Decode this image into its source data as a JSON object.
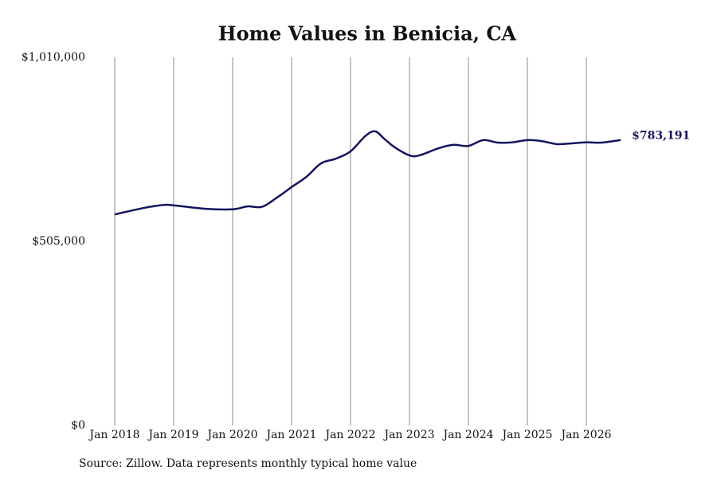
{
  "chart_data": {
    "type": "line",
    "title": "Home Values in Benicia, CA",
    "source": "Source: Zillow. Data represents monthly typical home value",
    "end_label": "$783,191",
    "x": [
      2018.0,
      2018.5,
      2018.833,
      2019.0,
      2019.5,
      2020.0,
      2020.25,
      2020.5,
      2020.75,
      2021.0,
      2021.25,
      2021.5,
      2021.75,
      2022.0,
      2022.25,
      2022.417,
      2022.583,
      2022.75,
      2023.0,
      2023.167,
      2023.5,
      2023.75,
      2024.0,
      2024.25,
      2024.5,
      2024.75,
      2025.0,
      2025.25,
      2025.5,
      2025.75,
      2026.0,
      2026.25,
      2026.583
    ],
    "series": [
      {
        "name": "Typical home value",
        "color": "#14155e",
        "values": [
          579000,
          597000,
          605000,
          604000,
          595000,
          593000,
          601000,
          600000,
          625000,
          654000,
          682000,
          719000,
          732000,
          752000,
          794000,
          807000,
          785000,
          763000,
          741000,
          741000,
          761000,
          770000,
          767000,
          783000,
          776000,
          777000,
          783000,
          780000,
          772000,
          774000,
          777000,
          776000,
          783191
        ]
      }
    ],
    "xlim": [
      2018.0,
      2026.583
    ],
    "xticks": [
      {
        "value": 2018,
        "label": "Jan 2018"
      },
      {
        "value": 2019,
        "label": "Jan 2019"
      },
      {
        "value": 2020,
        "label": "Jan 2020"
      },
      {
        "value": 2021,
        "label": "Jan 2021"
      },
      {
        "value": 2022,
        "label": "Jan 2022"
      },
      {
        "value": 2023,
        "label": "Jan 2023"
      },
      {
        "value": 2024,
        "label": "Jan 2024"
      },
      {
        "value": 2025,
        "label": "Jan 2025"
      },
      {
        "value": 2026,
        "label": "Jan 2026"
      }
    ],
    "ylim": [
      0,
      1010000
    ],
    "yticks": [
      {
        "value": 0,
        "label": "$0"
      },
      {
        "value": 505000,
        "label": "$505,000"
      },
      {
        "value": 1010000,
        "label": "$1,010,000"
      }
    ],
    "grid": "x"
  }
}
